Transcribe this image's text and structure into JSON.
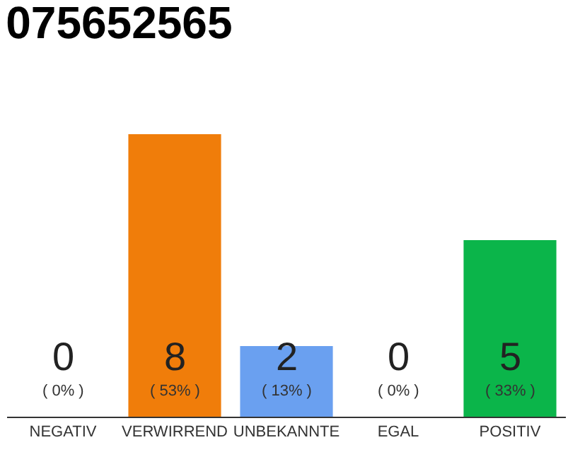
{
  "chart_data": {
    "type": "bar",
    "title": "075652565",
    "categories": [
      "NEGATIV",
      "VERWIRREND",
      "UNBEKANNTE",
      "EGAL",
      "POSITIV"
    ],
    "values": [
      0,
      8,
      2,
      0,
      5
    ],
    "colors": [
      "#9e9e9e",
      "#f07d0a",
      "#6aa0f0",
      "#9e9e9e",
      "#0bb54a"
    ],
    "ylim": [
      0,
      8
    ],
    "data_labels": true,
    "legend": false,
    "tick_labels": "x",
    "annotations": [
      {
        "text": "( 0% )",
        "x": "NEGATIV",
        "y": 0
      },
      {
        "text": "( 53% )",
        "x": "VERWIRREND",
        "y": 0
      },
      {
        "text": "( 13% )",
        "x": "UNBEKANNTE",
        "y": 0
      },
      {
        "text": "( 0% )",
        "x": "EGAL",
        "y": 0
      },
      {
        "text": "( 33% )",
        "x": "POSITIV",
        "y": 0
      }
    ]
  }
}
